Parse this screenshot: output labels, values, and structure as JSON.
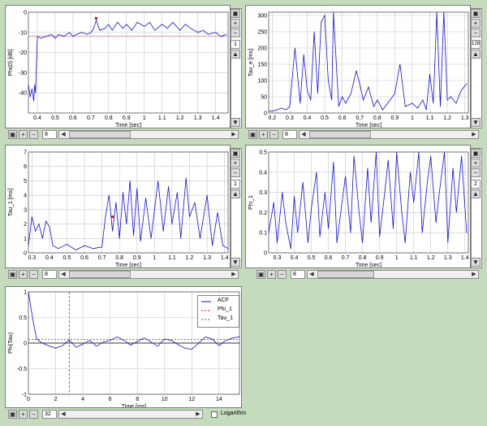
{
  "colors": {
    "background": "#c4dcbc",
    "plot_line": "#1010dd",
    "grid": "#c8c8c8",
    "marker": "#d01010",
    "phi_line": "#d01010",
    "tau_line": "#109010"
  },
  "panels": {
    "phi0": {
      "zoom_value": "8",
      "side_value": "1"
    },
    "tau_e": {
      "zoom_value": "8",
      "side_value": "128"
    },
    "tau_1": {
      "zoom_value": "8",
      "side_value": "1"
    },
    "phi_1": {
      "zoom_value": "8",
      "side_value": "2"
    },
    "acf": {
      "zoom_value": "32",
      "logarithm_label": "Logarithm"
    }
  },
  "icons": [
    "print-icon",
    "zoom-in-icon",
    "zoom-out-icon",
    "scroll-up-icon",
    "scroll-down-icon",
    "scroll-left-icon",
    "scroll-right-icon"
  ],
  "chart_data": [
    {
      "id": "phi0",
      "type": "line",
      "title": "",
      "xlabel": "Time [sec]",
      "ylabel": "Phi(0) [dB]",
      "xlim": [
        0.35,
        1.47
      ],
      "ylim": [
        -50,
        0
      ],
      "xticks": [
        "0.4",
        "0.5",
        "0.6",
        "0.7",
        "0.8",
        "0.9",
        "1",
        "1.1",
        "1.2",
        "1.3",
        "1.4"
      ],
      "yticks": [
        "0",
        "-10",
        "-20",
        "-30",
        "-40"
      ],
      "x": [
        0.35,
        0.36,
        0.37,
        0.38,
        0.385,
        0.39,
        0.4,
        0.42,
        0.45,
        0.48,
        0.5,
        0.52,
        0.55,
        0.58,
        0.6,
        0.62,
        0.65,
        0.68,
        0.7,
        0.71,
        0.72,
        0.73,
        0.75,
        0.78,
        0.8,
        0.82,
        0.85,
        0.88,
        0.9,
        0.93,
        0.96,
        1.0,
        1.03,
        1.06,
        1.1,
        1.13,
        1.16,
        1.2,
        1.23,
        1.26,
        1.3,
        1.33,
        1.36,
        1.4,
        1.43,
        1.46
      ],
      "values": [
        -36,
        -42,
        -38,
        -44,
        -36,
        -40,
        -12,
        -13,
        -12,
        -11,
        -13,
        -11,
        -12,
        -10,
        -12,
        -11,
        -10,
        -11,
        -10,
        -9,
        -7,
        -4,
        -9,
        -8,
        -6,
        -9,
        -5,
        -8,
        -6,
        -9,
        -5,
        -7,
        -5,
        -9,
        -6,
        -8,
        -5,
        -9,
        -6,
        -8,
        -10,
        -9,
        -11,
        -10,
        -12,
        -11
      ],
      "reference_line": -12,
      "marker": [
        0.73,
        -3
      ]
    },
    {
      "id": "tau_e",
      "type": "line",
      "title": "",
      "xlabel": "Time [sec]",
      "ylabel": "Tau_e [ms]",
      "xlim": [
        0.18,
        1.32
      ],
      "ylim": [
        0,
        310
      ],
      "xticks": [
        "0.2",
        "0.3",
        "0.4",
        "0.5",
        "0.6",
        "0.7",
        "0.8",
        "0.9",
        "1",
        "1.1",
        "1.2",
        "1.3"
      ],
      "yticks": [
        "300",
        "250",
        "200",
        "150",
        "100",
        "50",
        "0"
      ],
      "x": [
        0.18,
        0.22,
        0.25,
        0.28,
        0.3,
        0.33,
        0.36,
        0.38,
        0.4,
        0.42,
        0.44,
        0.46,
        0.48,
        0.5,
        0.52,
        0.54,
        0.55,
        0.58,
        0.6,
        0.62,
        0.65,
        0.68,
        0.7,
        0.72,
        0.75,
        0.78,
        0.8,
        0.83,
        0.86,
        0.9,
        0.93,
        0.96,
        1.0,
        1.03,
        1.06,
        1.08,
        1.1,
        1.12,
        1.14,
        1.16,
        1.18,
        1.2,
        1.22,
        1.25,
        1.28,
        1.31
      ],
      "values": [
        5,
        8,
        15,
        10,
        20,
        200,
        30,
        180,
        70,
        40,
        250,
        60,
        280,
        300,
        100,
        40,
        310,
        20,
        50,
        30,
        60,
        130,
        90,
        40,
        80,
        20,
        40,
        10,
        30,
        60,
        150,
        20,
        30,
        15,
        40,
        10,
        120,
        30,
        310,
        20,
        310,
        40,
        50,
        30,
        70,
        90
      ]
    },
    {
      "id": "tau_1",
      "type": "line",
      "title": "",
      "xlabel": "Time [sec]",
      "ylabel": "Tau_1 [ms]",
      "xlim": [
        0.28,
        1.42
      ],
      "ylim": [
        0,
        7
      ],
      "xticks": [
        "0.3",
        "0.4",
        "0.5",
        "0.6",
        "0.7",
        "0.8",
        "0.9",
        "1",
        "1.1",
        "1.2",
        "1.3",
        "1.4"
      ],
      "yticks": [
        "7",
        "6",
        "5",
        "4",
        "3",
        "2",
        "1",
        "0"
      ],
      "x": [
        0.28,
        0.3,
        0.32,
        0.34,
        0.36,
        0.38,
        0.4,
        0.42,
        0.45,
        0.5,
        0.55,
        0.6,
        0.65,
        0.7,
        0.72,
        0.74,
        0.76,
        0.78,
        0.8,
        0.82,
        0.84,
        0.86,
        0.88,
        0.9,
        0.92,
        0.95,
        0.98,
        1.0,
        1.02,
        1.05,
        1.08,
        1.1,
        1.13,
        1.15,
        1.18,
        1.2,
        1.23,
        1.26,
        1.3,
        1.33,
        1.36,
        1.39,
        1.42
      ],
      "values": [
        0.5,
        2.5,
        1.5,
        2.0,
        1.0,
        2.2,
        1.8,
        0.5,
        0.3,
        0.6,
        0.2,
        0.5,
        0.3,
        0.4,
        2.5,
        4.0,
        1.5,
        3.5,
        1.0,
        4.2,
        2.0,
        5.0,
        1.2,
        4.5,
        0.8,
        3.8,
        1.0,
        3.0,
        5.0,
        1.5,
        4.6,
        2.0,
        4.2,
        1.0,
        5.2,
        2.5,
        3.5,
        1.0,
        4.0,
        0.5,
        2.8,
        0.5,
        0.3
      ],
      "marker": [
        0.76,
        2.5
      ]
    },
    {
      "id": "phi_1",
      "type": "line",
      "title": "",
      "xlabel": "Time [sec]",
      "ylabel": "Phi_1",
      "xlim": [
        0.25,
        1.42
      ],
      "ylim": [
        0,
        0.5
      ],
      "xticks": [
        "0.3",
        "0.4",
        "0.5",
        "0.6",
        "0.7",
        "0.8",
        "0.9",
        "1",
        "1.1",
        "1.2",
        "1.3",
        "1.4"
      ],
      "yticks": [
        "0.5",
        "0.4",
        "0.3",
        "0.2",
        "0.1",
        "0"
      ],
      "x": [
        0.25,
        0.28,
        0.3,
        0.33,
        0.35,
        0.38,
        0.4,
        0.42,
        0.45,
        0.48,
        0.5,
        0.53,
        0.55,
        0.58,
        0.6,
        0.63,
        0.65,
        0.68,
        0.7,
        0.73,
        0.75,
        0.78,
        0.8,
        0.83,
        0.85,
        0.88,
        0.9,
        0.93,
        0.95,
        0.98,
        1.0,
        1.03,
        1.05,
        1.08,
        1.1,
        1.13,
        1.15,
        1.18,
        1.2,
        1.23,
        1.25,
        1.28,
        1.3,
        1.33,
        1.35,
        1.38,
        1.41
      ],
      "values": [
        0.1,
        0.25,
        0.05,
        0.3,
        0.15,
        0.02,
        0.28,
        0.1,
        0.35,
        0.05,
        0.22,
        0.4,
        0.08,
        0.3,
        0.12,
        0.45,
        0.05,
        0.25,
        0.38,
        0.1,
        0.48,
        0.2,
        0.05,
        0.42,
        0.15,
        0.5,
        0.08,
        0.3,
        0.46,
        0.12,
        0.5,
        0.2,
        0.05,
        0.4,
        0.25,
        0.5,
        0.1,
        0.35,
        0.48,
        0.15,
        0.3,
        0.5,
        0.05,
        0.42,
        0.2,
        0.48,
        0.1
      ]
    },
    {
      "id": "acf",
      "type": "line",
      "title": "",
      "xlabel": "Time [ms]",
      "ylabel": "Phi(Tau)",
      "xlim": [
        0,
        15.5
      ],
      "ylim": [
        -1,
        1
      ],
      "xticks": [
        "0",
        "2",
        "4",
        "6",
        "8",
        "10",
        "12",
        "14"
      ],
      "yticks": [
        "1",
        "0.5",
        "0",
        "-0.5",
        "-1"
      ],
      "x": [
        0,
        0.3,
        0.6,
        1.0,
        1.5,
        2.0,
        2.5,
        3.0,
        3.5,
        4.0,
        4.5,
        5.0,
        5.5,
        6.0,
        6.5,
        7.0,
        7.5,
        8.0,
        8.5,
        9.0,
        9.5,
        10.0,
        10.5,
        11.0,
        11.5,
        12.0,
        12.5,
        13.0,
        13.5,
        14.0,
        14.5,
        15.0,
        15.5
      ],
      "values": [
        1.0,
        0.5,
        0.08,
        0.0,
        -0.05,
        -0.1,
        -0.05,
        0.06,
        -0.08,
        -0.02,
        0.05,
        -0.06,
        0.02,
        0.05,
        0.12,
        0.06,
        -0.04,
        0.03,
        0.1,
        0.02,
        -0.06,
        0.08,
        0.05,
        -0.03,
        -0.1,
        -0.12,
        0.0,
        0.12,
        0.08,
        -0.05,
        0.05,
        0.1,
        0.12
      ],
      "phi_1_level": 0.07,
      "tau_1_position": 3.0,
      "legend": [
        "ACF",
        "Phi_1",
        "Tau_1"
      ]
    }
  ]
}
